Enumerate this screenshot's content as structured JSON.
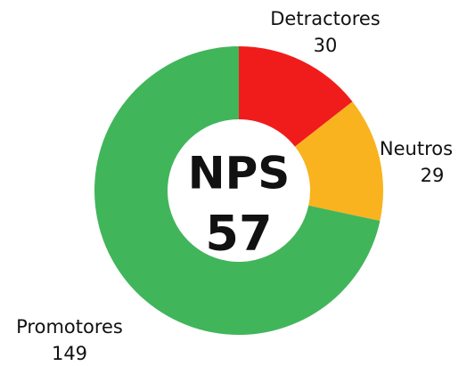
{
  "chart_data": {
    "type": "donut",
    "categories": [
      "Detractores",
      "Neutros",
      "Promotores"
    ],
    "values": [
      30,
      29,
      149
    ],
    "colors": [
      "#f01c1c",
      "#f9b31f",
      "#41b55a"
    ],
    "center_title": "NPS",
    "center_value": 57
  }
}
